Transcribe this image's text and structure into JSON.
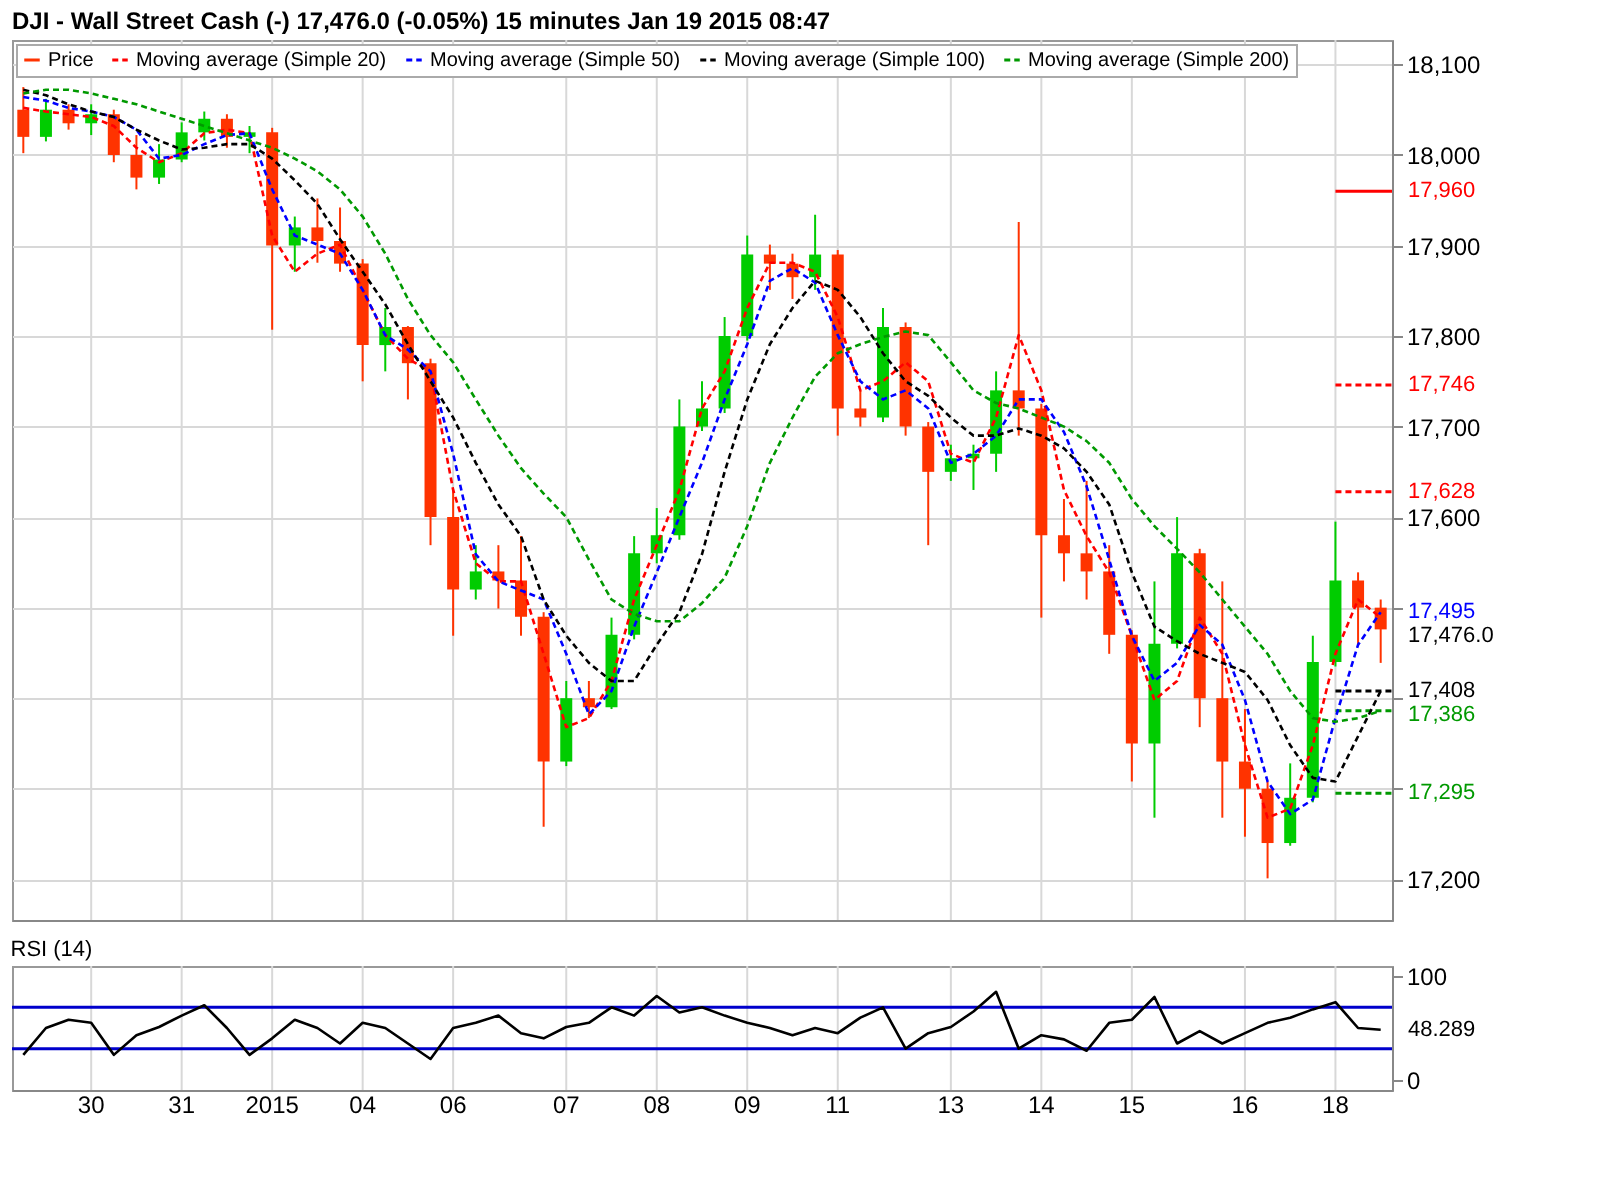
{
  "chart_data": [
    {
      "type": "candlestick",
      "title": "DJI - Wall Street Cash (-)  17,476.0 (-0.05%)  15 minutes  Jan 19 2015 08:47",
      "categories": [
        null,
        null,
        null,
        "30",
        null,
        null,
        null,
        "31",
        null,
        null,
        null,
        "2015",
        null,
        null,
        null,
        "04",
        null,
        null,
        null,
        "06",
        null,
        null,
        null,
        null,
        "07",
        null,
        null,
        null,
        "08",
        null,
        null,
        null,
        "09",
        null,
        null,
        null,
        "11",
        null,
        null,
        null,
        null,
        "13",
        null,
        null,
        null,
        "14",
        null,
        null,
        null,
        "15",
        null,
        null,
        null,
        null,
        "16",
        null,
        null,
        null,
        "18",
        null,
        null
      ],
      "series": [
        {
          "name": "Price",
          "type": "candlestick",
          "ohlc": [
            [
              18050,
              18075,
              18002,
              18020
            ],
            [
              18020,
              18062,
              18015,
              18050
            ],
            [
              18050,
              18056,
              18028,
              18035
            ],
            [
              18035,
              18056,
              18022,
              18045
            ],
            [
              18045,
              18050,
              17992,
              18000
            ],
            [
              18000,
              18022,
              17962,
              17975
            ],
            [
              17975,
              18012,
              17968,
              17995
            ],
            [
              17995,
              18036,
              17992,
              18025
            ],
            [
              18025,
              18048,
              18016,
              18040
            ],
            [
              18040,
              18045,
              18008,
              18020
            ],
            [
              18020,
              18032,
              18002,
              18025
            ],
            [
              18025,
              18030,
              17807,
              17900
            ],
            [
              17900,
              17932,
              17871,
              17920
            ],
            [
              17920,
              17952,
              17881,
              17905
            ],
            [
              17905,
              17942,
              17871,
              17880
            ],
            [
              17880,
              17885,
              17750,
              17790
            ],
            [
              17790,
              17831,
              17761,
              17810
            ],
            [
              17810,
              17811,
              17730,
              17770
            ],
            [
              17770,
              17775,
              17569,
              17600
            ],
            [
              17600,
              17630,
              17469,
              17520
            ],
            [
              17520,
              17569,
              17509,
              17540
            ],
            [
              17540,
              17569,
              17499,
              17530
            ],
            [
              17530,
              17579,
              17469,
              17490
            ],
            [
              17490,
              17495,
              17258,
              17330
            ],
            [
              17330,
              17419,
              17325,
              17400
            ],
            [
              17400,
              17419,
              17378,
              17390
            ],
            [
              17390,
              17489,
              17388,
              17470
            ],
            [
              17470,
              17579,
              17465,
              17560
            ],
            [
              17560,
              17610,
              17549,
              17580
            ],
            [
              17580,
              17730,
              17575,
              17700
            ],
            [
              17700,
              17750,
              17695,
              17720
            ],
            [
              17720,
              17821,
              17715,
              17800
            ],
            [
              17800,
              17911,
              17795,
              17890
            ],
            [
              17890,
              17901,
              17851,
              17880
            ],
            [
              17880,
              17891,
              17841,
              17865
            ],
            [
              17865,
              17934,
              17851,
              17890
            ],
            [
              17890,
              17895,
              17690,
              17720
            ],
            [
              17720,
              17740,
              17700,
              17710
            ],
            [
              17710,
              17831,
              17705,
              17810
            ],
            [
              17810,
              17815,
              17690,
              17700
            ],
            [
              17700,
              17705,
              17569,
              17650
            ],
            [
              17650,
              17680,
              17640,
              17665
            ],
            [
              17665,
              17680,
              17630,
              17670
            ],
            [
              17670,
              17761,
              17650,
              17740
            ],
            [
              17740,
              17926,
              17690,
              17720
            ],
            [
              17720,
              17725,
              17489,
              17580
            ],
            [
              17580,
              17620,
              17529,
              17560
            ],
            [
              17560,
              17640,
              17509,
              17540
            ],
            [
              17540,
              17569,
              17449,
              17470
            ],
            [
              17470,
              17475,
              17308,
              17350
            ],
            [
              17350,
              17529,
              17268,
              17460
            ],
            [
              17460,
              17600,
              17455,
              17560
            ],
            [
              17560,
              17565,
              17368,
              17400
            ],
            [
              17400,
              17529,
              17268,
              17330
            ],
            [
              17330,
              17388,
              17247,
              17300
            ],
            [
              17300,
              17308,
              17201,
              17240
            ],
            [
              17240,
              17328,
              17237,
              17290
            ],
            [
              17290,
              17469,
              17285,
              17440
            ],
            [
              17440,
              17595,
              17435,
              17530
            ],
            [
              17530,
              17539,
              17459,
              17500
            ],
            [
              17500,
              17509,
              17439,
              17476
            ]
          ],
          "value_labels": [
            null,
            null,
            null,
            null,
            null,
            null,
            null,
            null,
            null,
            null,
            null,
            null,
            null,
            null,
            null,
            null,
            null,
            null,
            null,
            null,
            null,
            null,
            null,
            null,
            null,
            null,
            null,
            null,
            null,
            null,
            null,
            null,
            null,
            null,
            null,
            null,
            null,
            null,
            null,
            null,
            null,
            null,
            null,
            null,
            null,
            null,
            null,
            null,
            null,
            null,
            null,
            null,
            null,
            null,
            null,
            null,
            null,
            null,
            null,
            null,
            "17,476.0"
          ],
          "colors": [
            "#ff3300",
            "#00cc00",
            "#ff3300",
            "#00cc00",
            "#ff3300",
            "#ff3300",
            "#00cc00",
            "#00cc00",
            "#00cc00",
            "#ff3300",
            "#00cc00",
            "#ff3300",
            "#00cc00",
            "#ff3300",
            "#ff3300",
            "#ff3300",
            "#00cc00",
            "#ff3300",
            "#ff3300",
            "#ff3300",
            "#00cc00",
            "#ff3300",
            "#ff3300",
            "#ff3300",
            "#00cc00",
            "#ff3300",
            "#00cc00",
            "#00cc00",
            "#00cc00",
            "#00cc00",
            "#00cc00",
            "#00cc00",
            "#00cc00",
            "#ff3300",
            "#ff3300",
            "#00cc00",
            "#ff3300",
            "#ff3300",
            "#00cc00",
            "#ff3300",
            "#ff3300",
            "#00cc00",
            "#00cc00",
            "#00cc00",
            "#ff3300",
            "#ff3300",
            "#ff3300",
            "#ff3300",
            "#ff3300",
            "#ff3300",
            "#00cc00",
            "#00cc00",
            "#ff3300",
            "#ff3300",
            "#ff3300",
            "#ff3300",
            "#00cc00",
            "#00cc00",
            "#00cc00",
            "#ff3300",
            "#ff3300"
          ]
        },
        {
          "name": "Moving average (Simple 20)",
          "type": "line",
          "color": "#ff0000",
          "line_style": "dashed",
          "values": [
            18052,
            18048,
            18045,
            18042,
            18032,
            18008,
            17992,
            18002,
            18024,
            18028,
            18024,
            17911,
            17871,
            17891,
            17901,
            17851,
            17801,
            17775,
            17761,
            17630,
            17549,
            17529,
            17529,
            17449,
            17368,
            17378,
            17419,
            17509,
            17569,
            17630,
            17720,
            17761,
            17831,
            17881,
            17881,
            17871,
            17821,
            17740,
            17750,
            17771,
            17750,
            17670,
            17660,
            17710,
            17801,
            17740,
            17630,
            17579,
            17539,
            17469,
            17398,
            17419,
            17489,
            17449,
            17348,
            17268,
            17278,
            17348,
            17449,
            17509,
            17489
          ]
        },
        {
          "name": "Moving average (Simple 50)",
          "type": "line",
          "color": "#0000ff",
          "line_style": "dashed",
          "values": [
            18064,
            18060,
            18052,
            18048,
            18042,
            18028,
            17996,
            18000,
            18012,
            18022,
            18024,
            17962,
            17911,
            17901,
            17891,
            17851,
            17801,
            17785,
            17761,
            17670,
            17559,
            17529,
            17519,
            17509,
            17449,
            17382,
            17408,
            17479,
            17539,
            17600,
            17660,
            17730,
            17791,
            17861,
            17875,
            17859,
            17801,
            17750,
            17730,
            17740,
            17720,
            17660,
            17670,
            17690,
            17730,
            17730,
            17694,
            17634,
            17553,
            17469,
            17419,
            17439,
            17481,
            17459,
            17398,
            17308,
            17272,
            17288,
            17378,
            17459,
            17495
          ],
          "value_labels": [
            null,
            null,
            null,
            null,
            null,
            null,
            null,
            null,
            null,
            null,
            null,
            null,
            null,
            null,
            null,
            null,
            null,
            null,
            null,
            null,
            null,
            null,
            null,
            null,
            null,
            null,
            null,
            null,
            null,
            null,
            null,
            null,
            null,
            null,
            null,
            null,
            null,
            null,
            null,
            null,
            null,
            null,
            null,
            null,
            null,
            null,
            null,
            null,
            null,
            null,
            null,
            null,
            null,
            null,
            null,
            null,
            null,
            null,
            null,
            null,
            "17,495"
          ]
        },
        {
          "name": "Moving average (Simple 100)",
          "type": "line",
          "color": "#000000",
          "line_style": "dashed",
          "values": [
            18072,
            18066,
            18056,
            18048,
            18042,
            18028,
            18016,
            18006,
            18008,
            18012,
            18012,
            17996,
            17972,
            17946,
            17907,
            17871,
            17835,
            17791,
            17750,
            17710,
            17660,
            17614,
            17579,
            17509,
            17469,
            17439,
            17419,
            17419,
            17459,
            17495,
            17559,
            17650,
            17730,
            17791,
            17831,
            17861,
            17851,
            17821,
            17781,
            17750,
            17734,
            17710,
            17690,
            17690,
            17698,
            17690,
            17676,
            17650,
            17614,
            17539,
            17479,
            17463,
            17449,
            17439,
            17429,
            17398,
            17348,
            17312,
            17308,
            17358,
            17408
          ]
        },
        {
          "name": "Moving average (Simple 200)",
          "type": "line",
          "color": "#009900",
          "line_style": "dashed",
          "values": [
            18068,
            18072,
            18072,
            18068,
            18062,
            18056,
            18048,
            18040,
            18032,
            18024,
            18016,
            18008,
            17996,
            17982,
            17962,
            17932,
            17891,
            17841,
            17801,
            17771,
            17730,
            17690,
            17654,
            17626,
            17600,
            17553,
            17509,
            17493,
            17485,
            17485,
            17505,
            17533,
            17590,
            17660,
            17710,
            17755,
            17781,
            17791,
            17799,
            17805,
            17801,
            17771,
            17740,
            17726,
            17720,
            17710,
            17700,
            17684,
            17660,
            17620,
            17590,
            17565,
            17539,
            17509,
            17479,
            17449,
            17408,
            17378,
            17374,
            17378,
            17386
          ]
        }
      ],
      "ylim": [
        17155,
        18127
      ],
      "yticks": [
        {
          "value": 17200,
          "label": "17,200"
        },
        {
          "value": 17300,
          "label": null
        },
        {
          "value": 17400,
          "label": null
        },
        {
          "value": 17500,
          "label": null
        },
        {
          "value": 17600,
          "label": "17,600"
        },
        {
          "value": 17700,
          "label": "17,700"
        },
        {
          "value": 17800,
          "label": "17,800"
        },
        {
          "value": 17900,
          "label": "17,900"
        },
        {
          "value": 18000,
          "label": "18,000"
        },
        {
          "value": 18100,
          "label": "18,100"
        }
      ],
      "ref_lines": [
        {
          "axis": "y",
          "value": 17960,
          "label": "17,960",
          "color": "#ff0000",
          "line_style": "solid"
        },
        {
          "axis": "y",
          "value": 17746,
          "label": "17,746",
          "color": "#ff0000",
          "line_style": "dashed"
        },
        {
          "axis": "y",
          "value": 17628,
          "label": "17,628",
          "color": "#ff0000",
          "line_style": "dashed"
        },
        {
          "axis": "y",
          "value": 17408,
          "label": "17,408",
          "color": "#000000",
          "line_style": "dashed"
        },
        {
          "axis": "y",
          "value": 17386,
          "label": "17,386",
          "color": "#009900",
          "line_style": "dashed"
        },
        {
          "axis": "y",
          "value": 17295,
          "label": "17,295",
          "color": "#009900",
          "line_style": "dashed"
        }
      ],
      "grid": true,
      "legend": "top left",
      "tick_labels": "y"
    },
    {
      "type": "line",
      "title": "RSI (14)",
      "categories": [
        null,
        null,
        null,
        "30",
        null,
        null,
        null,
        "31",
        null,
        null,
        null,
        "2015",
        null,
        null,
        null,
        "04",
        null,
        null,
        null,
        "06",
        null,
        null,
        null,
        null,
        "07",
        null,
        null,
        null,
        "08",
        null,
        null,
        null,
        "09",
        null,
        null,
        null,
        "11",
        null,
        null,
        null,
        null,
        "13",
        null,
        null,
        null,
        "14",
        null,
        null,
        null,
        "15",
        null,
        null,
        null,
        null,
        "16",
        null,
        null,
        null,
        "18",
        null,
        null
      ],
      "series": [
        {
          "color": "#000000",
          "line_style": "solid",
          "values": [
            24,
            50,
            58,
            55,
            24,
            43,
            51,
            62,
            72,
            50,
            24,
            40,
            58,
            50,
            35,
            55,
            50,
            35,
            20,
            50,
            55,
            62,
            45,
            40,
            51,
            55,
            70,
            62,
            81,
            65,
            70,
            62,
            55,
            50,
            43,
            50,
            45,
            60,
            70,
            30,
            45,
            51,
            66,
            85,
            30,
            43,
            39,
            28,
            55,
            58,
            80,
            35,
            47,
            35,
            45,
            55,
            60,
            68,
            75,
            50,
            48.289
          ],
          "value_labels": [
            null,
            null,
            null,
            null,
            null,
            null,
            null,
            null,
            null,
            null,
            null,
            null,
            null,
            null,
            null,
            null,
            null,
            null,
            null,
            null,
            null,
            null,
            null,
            null,
            null,
            null,
            null,
            null,
            null,
            null,
            null,
            null,
            null,
            null,
            null,
            null,
            null,
            null,
            null,
            null,
            null,
            null,
            null,
            null,
            null,
            null,
            null,
            null,
            null,
            null,
            null,
            null,
            null,
            null,
            null,
            null,
            null,
            null,
            null,
            null,
            "48.289"
          ]
        }
      ],
      "ylim": [
        -10,
        110
      ],
      "yticks": [
        0,
        100
      ],
      "ref_lines": [
        {
          "axis": "y",
          "value": 70,
          "color": "#0000cc",
          "line_style": "solid"
        },
        {
          "axis": "y",
          "value": 30,
          "color": "#0000cc",
          "line_style": "solid"
        }
      ],
      "grid": "x"
    }
  ]
}
